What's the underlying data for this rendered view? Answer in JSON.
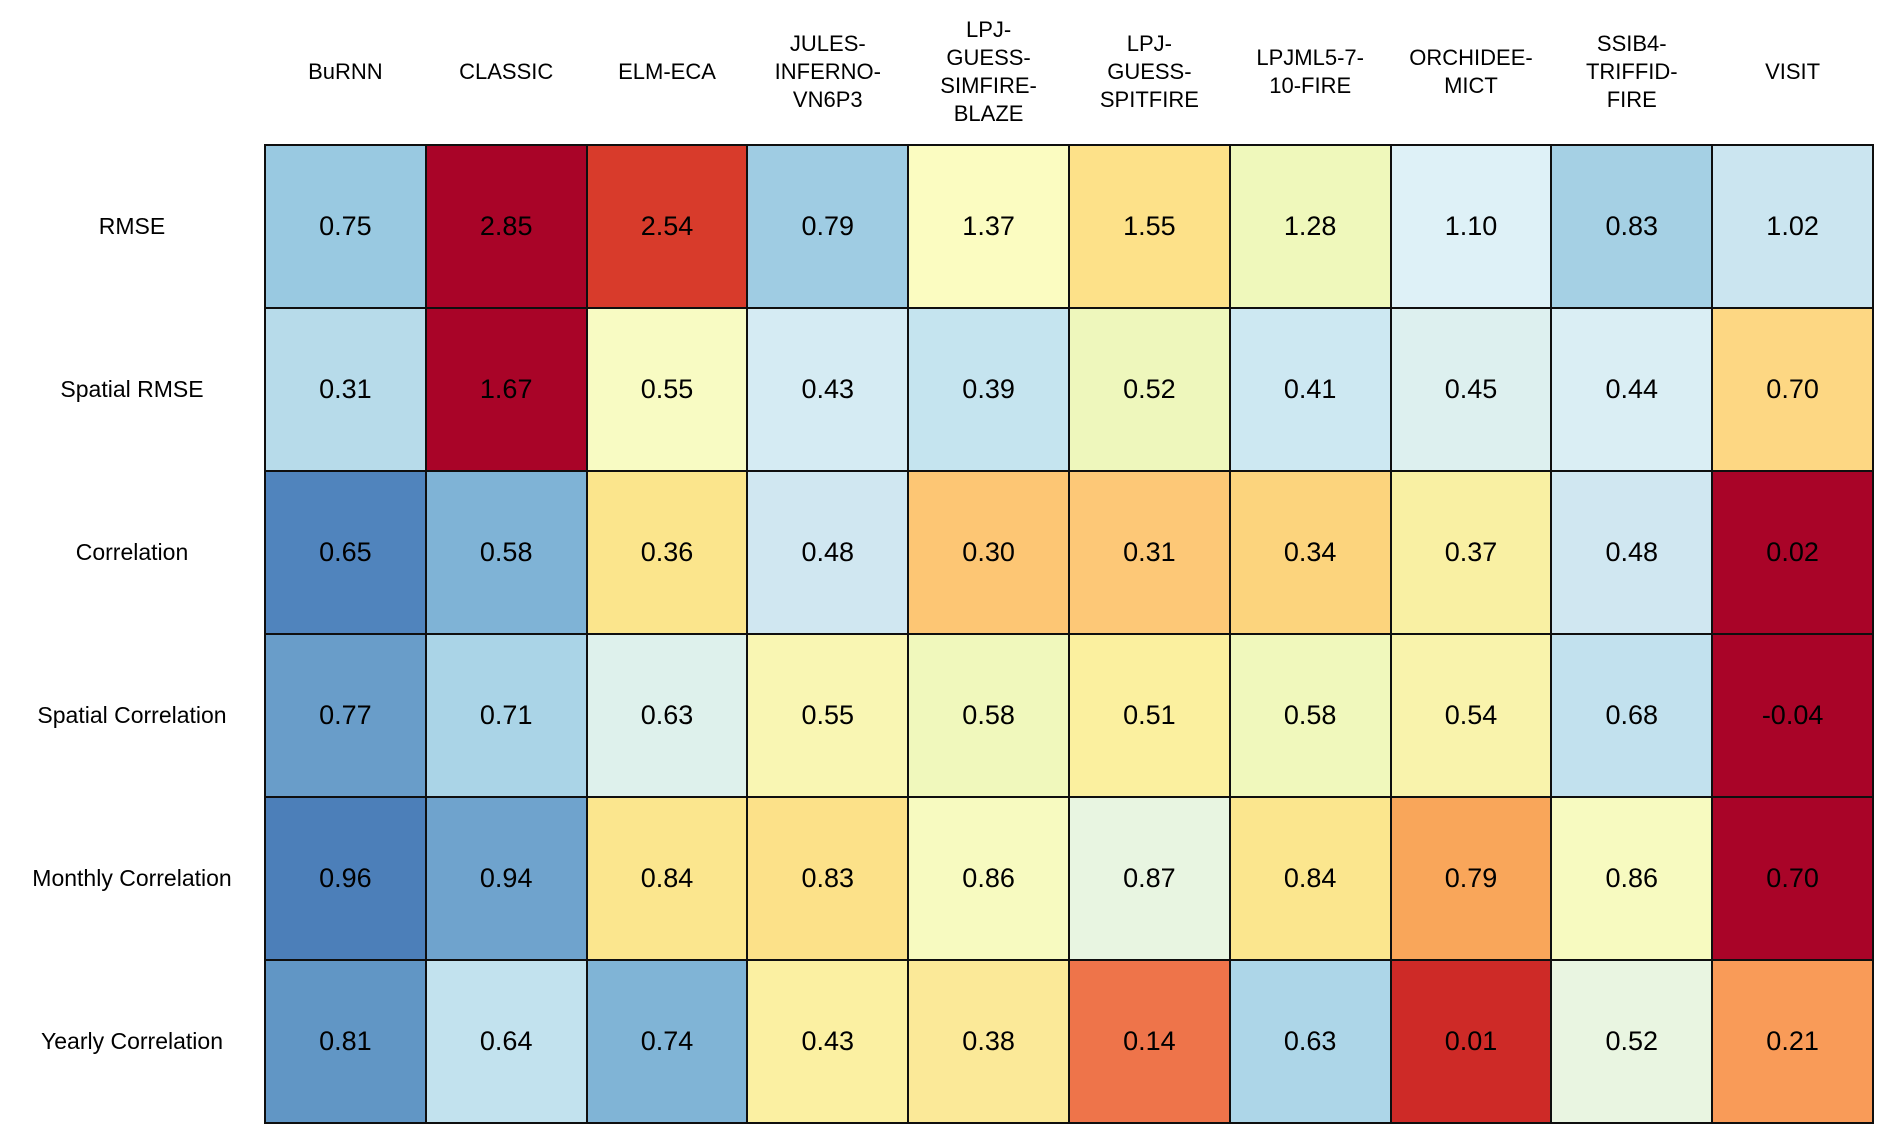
{
  "chart_data": {
    "type": "heatmap",
    "title": "",
    "xlabel": "",
    "ylabel": "",
    "colormap": "RdYlBu",
    "background": "#ffffff",
    "grid_color": "#0f0f0f",
    "value_text_color": "#000000",
    "columns": [
      {
        "label": "BuRNN",
        "lines": [
          "BuRNN"
        ]
      },
      {
        "label": "CLASSIC",
        "lines": [
          "CLASSIC"
        ]
      },
      {
        "label": "ELM-ECA",
        "lines": [
          "ELM-ECA"
        ]
      },
      {
        "label": "JULES-INFERNO-VN6P3",
        "lines": [
          "JULES-",
          "INFERNO-",
          "VN6P3"
        ]
      },
      {
        "label": "LPJ-GUESS-SIMFIRE-BLAZE",
        "lines": [
          "LPJ-",
          "GUESS-",
          "SIMFIRE-",
          "BLAZE"
        ]
      },
      {
        "label": "LPJ-GUESS-SPITFIRE",
        "lines": [
          "LPJ-",
          "GUESS-",
          "SPITFIRE"
        ]
      },
      {
        "label": "LPJML5-7-10-FIRE",
        "lines": [
          "LPJML5-7-",
          "10-FIRE"
        ]
      },
      {
        "label": "ORCHIDEE-MICT",
        "lines": [
          "ORCHIDEE-",
          "MICT"
        ]
      },
      {
        "label": "SSIB4-TRIFFID-FIRE",
        "lines": [
          "SSIB4-",
          "TRIFFID-",
          "FIRE"
        ]
      },
      {
        "label": "VISIT",
        "lines": [
          "VISIT"
        ]
      }
    ],
    "rows": [
      {
        "label": "RMSE",
        "values": [
          0.75,
          2.85,
          2.54,
          0.79,
          1.37,
          1.55,
          1.28,
          1.1,
          0.83,
          1.02
        ],
        "display": [
          "0.75",
          "2.85",
          "2.54",
          "0.79",
          "1.37",
          "1.55",
          "1.28",
          "1.10",
          "0.83",
          "1.02"
        ],
        "colors": [
          "#99c9e1",
          "#a90428",
          "#d83b2b",
          "#9fcce3",
          "#fbfcc1",
          "#fde189",
          "#eff8bb",
          "#def1f7",
          "#a5d0e4",
          "#cbe5f0"
        ]
      },
      {
        "label": "Spatial RMSE",
        "values": [
          0.31,
          1.67,
          0.55,
          0.43,
          0.39,
          0.52,
          0.41,
          0.45,
          0.44,
          0.7
        ],
        "display": [
          "0.31",
          "1.67",
          "0.55",
          "0.43",
          "0.39",
          "0.52",
          "0.41",
          "0.45",
          "0.44",
          "0.70"
        ],
        "colors": [
          "#b7dbea",
          "#a90428",
          "#f8fbc3",
          "#d5ebf3",
          "#c5e4ef",
          "#eef7bc",
          "#cde8f2",
          "#ddf0ef",
          "#daeef4",
          "#fdd783"
        ]
      },
      {
        "label": "Correlation",
        "values": [
          0.65,
          0.58,
          0.36,
          0.48,
          0.3,
          0.31,
          0.34,
          0.37,
          0.48,
          0.02
        ],
        "display": [
          "0.65",
          "0.58",
          "0.36",
          "0.48",
          "0.30",
          "0.31",
          "0.34",
          "0.37",
          "0.48",
          "0.02"
        ],
        "colors": [
          "#5084bd",
          "#7fb3d6",
          "#fbe58c",
          "#d0e7f1",
          "#fdc674",
          "#fdc877",
          "#fcd47d",
          "#f9f0a3",
          "#d0e7f1",
          "#a90428"
        ]
      },
      {
        "label": "Spatial Correlation",
        "values": [
          0.77,
          0.71,
          0.63,
          0.55,
          0.58,
          0.51,
          0.58,
          0.54,
          0.68,
          -0.04
        ],
        "display": [
          "0.77",
          "0.71",
          "0.63",
          "0.55",
          "0.58",
          "0.51",
          "0.58",
          "0.54",
          "0.68",
          "-0.04"
        ],
        "colors": [
          "#699dc9",
          "#aad4e7",
          "#def1ec",
          "#f9f6b3",
          "#f0f8bc",
          "#fbf09f",
          "#f0f8bc",
          "#f9f3ac",
          "#c2e1ee",
          "#a90428"
        ]
      },
      {
        "label": "Monthly Correlation",
        "values": [
          0.96,
          0.94,
          0.84,
          0.83,
          0.86,
          0.87,
          0.84,
          0.79,
          0.86,
          0.7
        ],
        "display": [
          "0.96",
          "0.94",
          "0.84",
          "0.83",
          "0.86",
          "0.87",
          "0.84",
          "0.79",
          "0.86",
          "0.70"
        ],
        "colors": [
          "#4c7fb9",
          "#6fa3cd",
          "#fbe68e",
          "#fce189",
          "#f7fac0",
          "#e8f5e1",
          "#fbe68e",
          "#f9a65a",
          "#f7fac0",
          "#a90428"
        ]
      },
      {
        "label": "Yearly Correlation",
        "values": [
          0.81,
          0.64,
          0.74,
          0.43,
          0.38,
          0.14,
          0.63,
          0.01,
          0.52,
          0.21
        ],
        "display": [
          "0.81",
          "0.64",
          "0.74",
          "0.43",
          "0.38",
          "0.14",
          "0.63",
          "0.01",
          "0.52",
          "0.21"
        ],
        "colors": [
          "#6196c5",
          "#c2e2ee",
          "#80b4d6",
          "#fbf0a2",
          "#fbe998",
          "#ee744a",
          "#add6e8",
          "#ce2a27",
          "#e9f5e1",
          "#f99b58"
        ]
      }
    ]
  }
}
